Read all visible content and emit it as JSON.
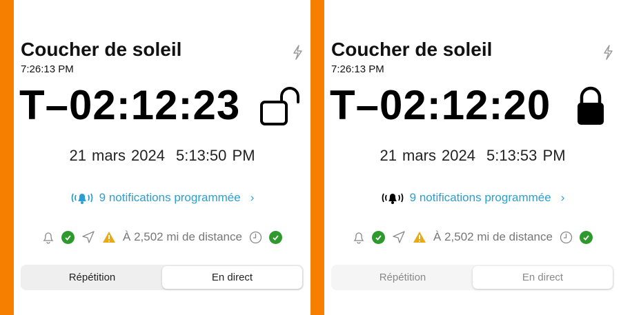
{
  "accent": "#f77f00",
  "panels": [
    {
      "title": "Coucher de soleil",
      "time": "7:26:13 PM",
      "countdown": "T–02:12:23",
      "lock": "lock-open",
      "date": "21 mars 2024",
      "clock": "5:13:50 PM",
      "notifications": "9 notifications programmée",
      "distance": "À 2,502 mi de distance",
      "segments": [
        "Répétition",
        "En direct"
      ],
      "selected": "En direct",
      "bell_color": "#2a9fd0"
    },
    {
      "title": "Coucher de soleil",
      "time": "7:26:13 PM",
      "countdown": "T–02:12:20",
      "lock": "lock-closed",
      "date": "21 mars 2024",
      "clock": "5:13:53 PM",
      "notifications": "9 notifications programmée",
      "distance": "À 2,502 mi de distance",
      "segments": [
        "Répétition",
        "En direct"
      ],
      "selected": "En direct",
      "bell_color": "#000000"
    }
  ]
}
